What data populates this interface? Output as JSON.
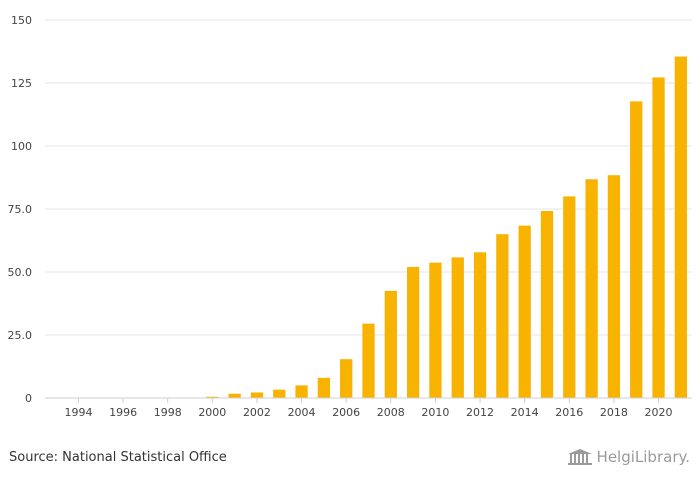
{
  "chart_data": {
    "type": "bar",
    "title": "",
    "xlabel": "",
    "ylabel": "",
    "ylim": [
      0,
      150
    ],
    "yticks": [
      0,
      25,
      50,
      75,
      100,
      125,
      150
    ],
    "ytick_labels": [
      "0",
      "25.0",
      "50.0",
      "75.0",
      "100",
      "125",
      "150"
    ],
    "xtick_labels": [
      "1994",
      "1996",
      "1998",
      "2000",
      "2002",
      "2004",
      "2006",
      "2008",
      "2010",
      "2012",
      "2014",
      "2016",
      "2018",
      "2020"
    ],
    "categories": [
      "1993",
      "1994",
      "1995",
      "1996",
      "1997",
      "1998",
      "1999",
      "2000",
      "2001",
      "2002",
      "2003",
      "2004",
      "2005",
      "2006",
      "2007",
      "2008",
      "2009",
      "2010",
      "2011",
      "2012",
      "2013",
      "2014",
      "2015",
      "2016",
      "2017",
      "2018",
      "2019",
      "2020",
      "2021"
    ],
    "values": [
      0,
      0,
      0,
      0,
      0,
      0,
      0,
      0.5,
      1.7,
      2.2,
      3.3,
      5.0,
      8.0,
      15.4,
      29.5,
      42.5,
      52.0,
      53.7,
      55.8,
      57.8,
      65.0,
      68.4,
      74.2,
      80.0,
      86.8,
      88.4,
      117.7,
      127.2,
      135.5
    ],
    "bar_color": "#f8b200",
    "grid": true,
    "legend": "none"
  },
  "footer": {
    "source": "Source: National Statistical Office",
    "brand": "HelgiLibrary."
  }
}
